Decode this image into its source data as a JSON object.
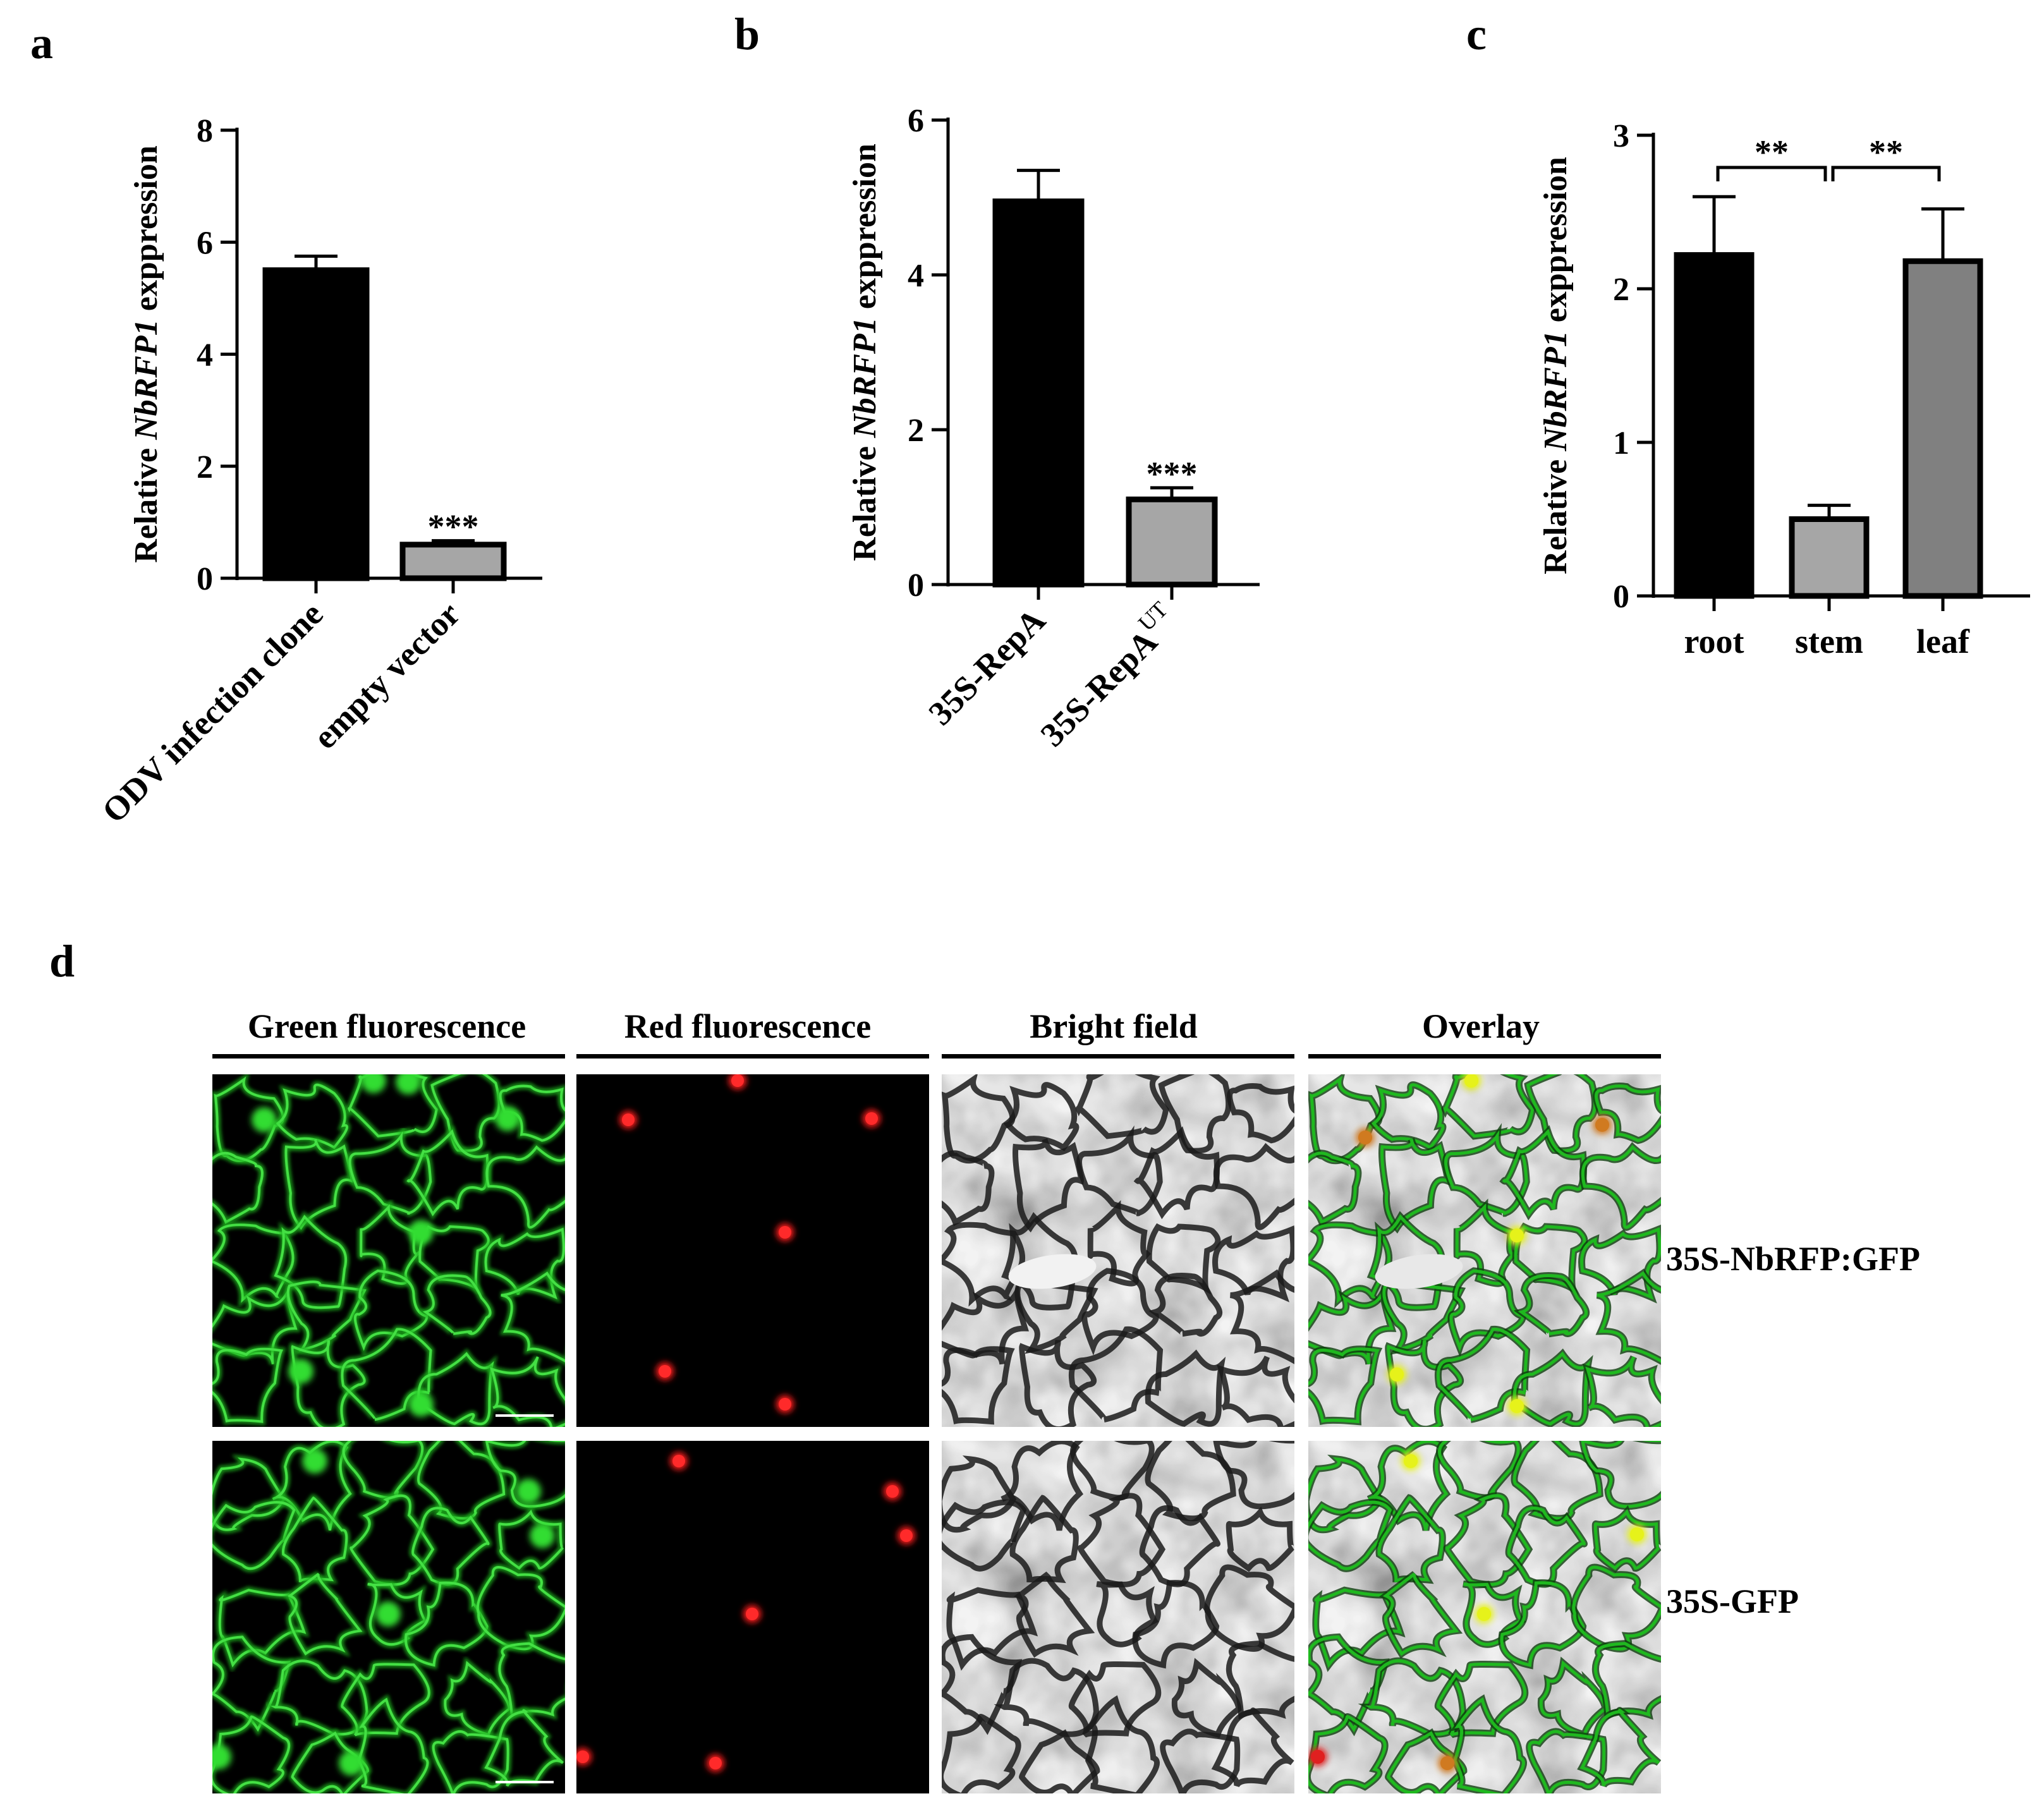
{
  "chart_data": [
    {
      "type": "bar",
      "panel": "a",
      "ylabel": {
        "pre": "Relative ",
        "gene": "NbRFP1",
        "post": " exppression"
      },
      "ylim": [
        0,
        8
      ],
      "yticks": [
        0,
        2,
        4,
        6,
        8
      ],
      "categories": [
        "ODV infection clone",
        "empty vector"
      ],
      "values": [
        5.5,
        0.6
      ],
      "errors": [
        0.25,
        0.07
      ],
      "colors": [
        "#000000",
        "#a6a6a6"
      ],
      "significance": [
        "",
        "***"
      ]
    },
    {
      "type": "bar",
      "panel": "b",
      "ylabel": {
        "pre": "Relative ",
        "gene": "NbRFP1",
        "post": " exppression"
      },
      "ylim": [
        0,
        6
      ],
      "yticks": [
        0,
        2,
        4,
        6
      ],
      "categories": [
        "35S-RepA",
        "35S-RepA"
      ],
      "category_superscripts": [
        "",
        "UT"
      ],
      "values": [
        4.95,
        1.1
      ],
      "errors": [
        0.4,
        0.15
      ],
      "colors": [
        "#000000",
        "#a6a6a6"
      ],
      "significance": [
        "",
        "***"
      ]
    },
    {
      "type": "bar",
      "panel": "c",
      "ylabel": {
        "pre": "Relative ",
        "gene": "NbRFP1",
        "post": " exppression"
      },
      "ylim": [
        0,
        3
      ],
      "yticks": [
        0,
        1,
        2,
        3
      ],
      "categories": [
        "root",
        "stem",
        "leaf"
      ],
      "values": [
        2.22,
        0.5,
        2.18
      ],
      "errors": [
        0.38,
        0.09,
        0.34
      ],
      "colors": [
        "#000000",
        "#a6a6a6",
        "#808080"
      ],
      "comparisons": [
        {
          "from": 0,
          "to": 1,
          "label": "**"
        },
        {
          "from": 1,
          "to": 2,
          "label": "**"
        }
      ]
    }
  ],
  "panel_d": {
    "label": "d",
    "columns": [
      "Green fluorescence",
      "Red fluorescence",
      "Bright field",
      "Overlay"
    ],
    "rows": [
      "35S-NbRFP:GFP",
      "35S-GFP"
    ]
  }
}
